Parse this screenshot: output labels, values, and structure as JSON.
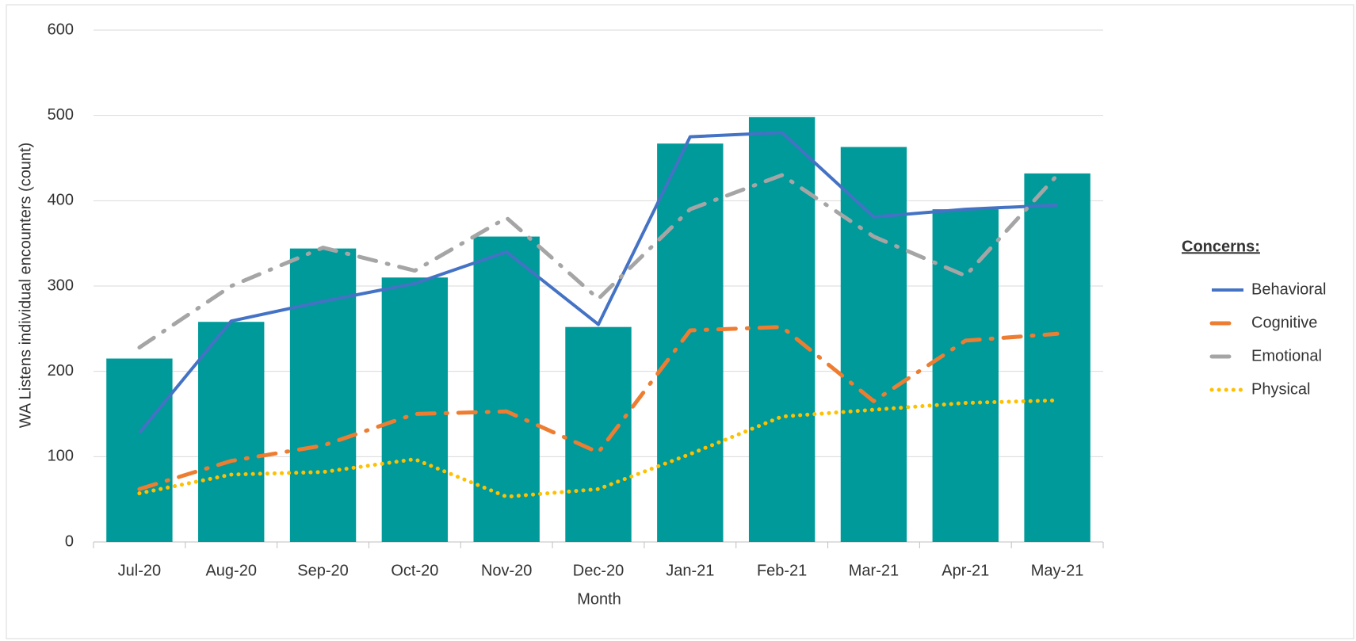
{
  "chart_data": {
    "type": "combo",
    "x_label": "Month",
    "y_label": "WA Listens individual encounters (count)",
    "legend_title": "Concerns:",
    "categories": [
      "Jul-20",
      "Aug-20",
      "Sep-20",
      "Oct-20",
      "Nov-20",
      "Dec-20",
      "Jan-21",
      "Feb-21",
      "Mar-21",
      "Apr-21",
      "May-21"
    ],
    "values": [
      215,
      258,
      344,
      310,
      358,
      252,
      467,
      498,
      463,
      390,
      432
    ],
    "color": "#009a9a",
    "series": [
      {
        "name": "Behavioral",
        "color": "#4472c4",
        "line_style": "solid",
        "values": [
          128,
          259,
          282,
          303,
          340,
          255,
          475,
          480,
          381,
          390,
          395
        ]
      },
      {
        "name": "Cognitive",
        "color": "#ed7d31",
        "line_style": "dashdot",
        "values": [
          62,
          95,
          113,
          150,
          153,
          105,
          248,
          252,
          165,
          236,
          244
        ]
      },
      {
        "name": "Emotional",
        "color": "#a5a5a5",
        "line_style": "dashdot",
        "values": [
          228,
          300,
          345,
          318,
          380,
          285,
          390,
          430,
          358,
          312,
          430
        ]
      },
      {
        "name": "Physical",
        "color": "#ffc000",
        "line_style": "dotted",
        "values": [
          57,
          79,
          82,
          97,
          53,
          62,
          103,
          147,
          155,
          163,
          166
        ]
      }
    ],
    "ylim": [
      0,
      600
    ],
    "yticks": [
      0,
      100,
      200,
      300,
      400,
      500,
      600
    ],
    "grid": true,
    "legend": "right"
  }
}
